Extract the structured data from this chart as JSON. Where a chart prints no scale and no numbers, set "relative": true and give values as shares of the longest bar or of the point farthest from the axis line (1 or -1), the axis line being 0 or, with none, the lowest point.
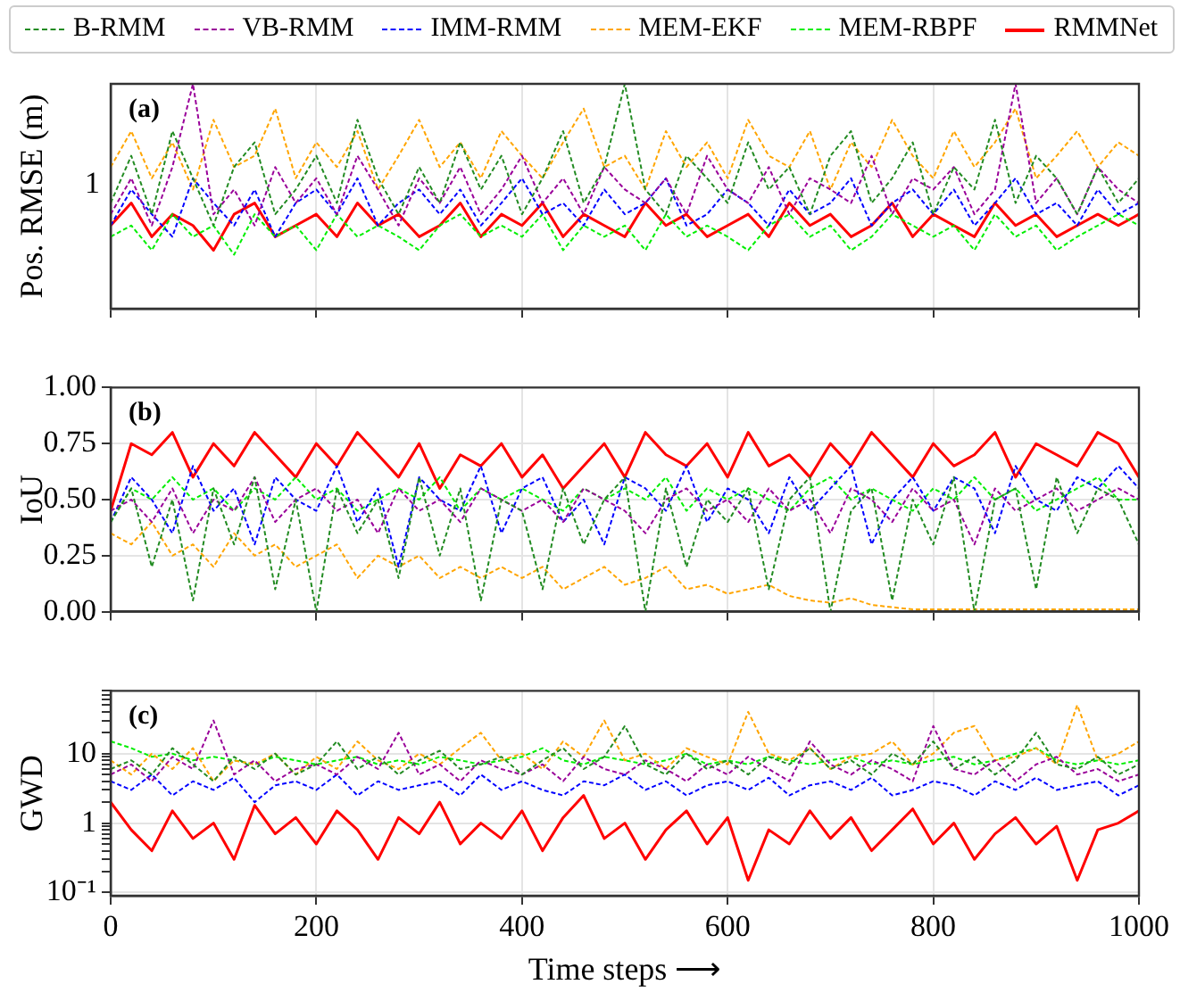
{
  "chart_data": [
    {
      "type": "line",
      "ylabel": "Pos. RMSE (m)",
      "annotations": [
        "(a)",
        "1"
      ],
      "legend": "top",
      "grid": true,
      "relative": true,
      "tick_labels": "y",
      "xlim": [
        0,
        1000
      ],
      "xticks": [
        0,
        200,
        400,
        600,
        800,
        1000
      ],
      "x": [
        0,
        20,
        40,
        60,
        80,
        100,
        120,
        140,
        160,
        180,
        200,
        220,
        240,
        260,
        280,
        300,
        320,
        340,
        360,
        380,
        400,
        420,
        440,
        460,
        480,
        500,
        520,
        540,
        560,
        580,
        600,
        620,
        640,
        660,
        680,
        700,
        720,
        740,
        760,
        780,
        800,
        820,
        840,
        860,
        880,
        900,
        920,
        940,
        960,
        980,
        1000
      ],
      "series": [
        {
          "name": "B-RMM",
          "color": "#228b22",
          "line_style": "dashed",
          "values": [
            0.47,
            0.68,
            0.42,
            0.79,
            0.58,
            0.37,
            0.63,
            0.74,
            0.42,
            0.53,
            0.68,
            0.47,
            0.84,
            0.58,
            0.42,
            0.63,
            0.47,
            0.74,
            0.53,
            0.68,
            0.42,
            0.58,
            0.79,
            0.47,
            0.63,
            1,
            0.53,
            0.42,
            0.68,
            0.58,
            0.47,
            0.74,
            0.53,
            0.63,
            0.42,
            0.68,
            0.79,
            0.47,
            0.58,
            0.74,
            0.42,
            0.63,
            0.53,
            0.84,
            0.47,
            0.68,
            0.58,
            0.42,
            0.63,
            0.47,
            0.58
          ]
        },
        {
          "name": "VB-RMM",
          "color": "#990099",
          "line_style": "dashed",
          "values": [
            0.42,
            0.58,
            0.37,
            0.63,
            1,
            0.42,
            0.53,
            0.37,
            0.63,
            0.47,
            0.58,
            0.42,
            0.68,
            0.53,
            0.37,
            0.58,
            0.47,
            0.63,
            0.42,
            0.53,
            0.68,
            0.47,
            0.58,
            0.42,
            0.63,
            0.53,
            0.47,
            0.58,
            0.42,
            0.68,
            0.53,
            0.47,
            0.63,
            0.42,
            0.58,
            0.53,
            0.47,
            0.68,
            0.42,
            0.58,
            0.53,
            0.63,
            0.42,
            0.53,
            1,
            0.47,
            0.58,
            0.42,
            0.63,
            0.53,
            0.47
          ]
        },
        {
          "name": "IMM-RMM",
          "color": "#0000ff",
          "line_style": "dashed",
          "values": [
            0.37,
            0.53,
            0.42,
            0.32,
            0.58,
            0.47,
            0.37,
            0.53,
            0.32,
            0.47,
            0.53,
            0.42,
            0.58,
            0.37,
            0.47,
            0.53,
            0.42,
            0.53,
            0.37,
            0.47,
            0.58,
            0.42,
            0.47,
            0.37,
            0.53,
            0.42,
            0.47,
            0.58,
            0.37,
            0.42,
            0.53,
            0.47,
            0.37,
            0.53,
            0.42,
            0.47,
            0.58,
            0.37,
            0.47,
            0.53,
            0.42,
            0.53,
            0.37,
            0.47,
            0.58,
            0.42,
            0.47,
            0.37,
            0.53,
            0.42,
            0.47
          ]
        },
        {
          "name": "MEM-EKF",
          "color": "#ffa500",
          "line_style": "dashed",
          "values": [
            0.63,
            0.79,
            0.58,
            0.74,
            0.53,
            0.84,
            0.63,
            0.68,
            0.89,
            0.58,
            0.74,
            0.63,
            0.79,
            0.53,
            0.68,
            0.84,
            0.63,
            0.74,
            0.58,
            0.79,
            0.68,
            0.58,
            0.74,
            0.89,
            0.63,
            0.68,
            0.53,
            0.79,
            0.63,
            0.74,
            0.58,
            0.84,
            0.68,
            0.63,
            0.79,
            0.53,
            0.74,
            0.63,
            0.84,
            0.68,
            0.58,
            0.79,
            0.63,
            0.74,
            0.89,
            0.58,
            0.68,
            0.79,
            0.63,
            0.74,
            0.68
          ]
        },
        {
          "name": "MEM-RBPF",
          "color": "#00ee00",
          "line_style": "dashed",
          "values": [
            0.32,
            0.37,
            0.26,
            0.42,
            0.32,
            0.37,
            0.24,
            0.42,
            0.32,
            0.37,
            0.26,
            0.42,
            0.32,
            0.37,
            0.32,
            0.26,
            0.37,
            0.42,
            0.32,
            0.37,
            0.32,
            0.42,
            0.26,
            0.37,
            0.32,
            0.37,
            0.26,
            0.42,
            0.32,
            0.37,
            0.32,
            0.26,
            0.37,
            0.42,
            0.32,
            0.37,
            0.26,
            0.32,
            0.42,
            0.37,
            0.32,
            0.37,
            0.26,
            0.42,
            0.32,
            0.37,
            0.26,
            0.32,
            0.37,
            0.42,
            0.37
          ]
        },
        {
          "name": "RMMNet",
          "color": "#ff0000",
          "line_style": "solid",
          "values": [
            0.37,
            0.47,
            0.32,
            0.42,
            0.37,
            0.26,
            0.42,
            0.47,
            0.32,
            0.37,
            0.42,
            0.32,
            0.47,
            0.37,
            0.42,
            0.32,
            0.37,
            0.47,
            0.32,
            0.42,
            0.37,
            0.47,
            0.32,
            0.42,
            0.37,
            0.32,
            0.47,
            0.37,
            0.42,
            0.32,
            0.37,
            0.42,
            0.32,
            0.47,
            0.37,
            0.42,
            0.32,
            0.37,
            0.47,
            0.32,
            0.42,
            0.37,
            0.32,
            0.47,
            0.37,
            0.42,
            0.32,
            0.37,
            0.42,
            0.37,
            0.42
          ]
        }
      ]
    },
    {
      "type": "line",
      "ylabel": "IoU",
      "annotations": [
        "(b)"
      ],
      "grid": true,
      "tick_labels": "y",
      "xlim": [
        0,
        1000
      ],
      "xticks": [
        0,
        200,
        400,
        600,
        800,
        1000
      ],
      "ylim": [
        0,
        1
      ],
      "yticks": [
        {
          "value": 0,
          "label": "0.00"
        },
        {
          "value": 0.25,
          "label": "0.25"
        },
        {
          "value": 0.5,
          "label": "0.50"
        },
        {
          "value": 0.75,
          "label": "0.75"
        },
        {
          "value": 1,
          "label": "1.00"
        }
      ],
      "x": [
        0,
        20,
        40,
        60,
        80,
        100,
        120,
        140,
        160,
        180,
        200,
        220,
        240,
        260,
        280,
        300,
        320,
        340,
        360,
        380,
        400,
        420,
        440,
        460,
        480,
        500,
        520,
        540,
        560,
        580,
        600,
        620,
        640,
        660,
        680,
        700,
        720,
        740,
        760,
        780,
        800,
        820,
        840,
        860,
        880,
        900,
        920,
        940,
        960,
        980,
        1000
      ],
      "series": [
        {
          "color": "#228b22",
          "line_style": "dashed",
          "values": [
            0.4,
            0.55,
            0.2,
            0.5,
            0.05,
            0.55,
            0.3,
            0.6,
            0.1,
            0.5,
            0.0,
            0.55,
            0.35,
            0.5,
            0.15,
            0.6,
            0.25,
            0.55,
            0.05,
            0.5,
            0.45,
            0.1,
            0.55,
            0.3,
            0.5,
            0.6,
            0.0,
            0.55,
            0.2,
            0.5,
            0.4,
            0.55,
            0.1,
            0.5,
            0.6,
            0.0,
            0.45,
            0.55,
            0.05,
            0.5,
            0.3,
            0.6,
            0.0,
            0.5,
            0.55,
            0.1,
            0.6,
            0.35,
            0.55,
            0.5,
            0.3
          ]
        },
        {
          "color": "#990099",
          "line_style": "dashed",
          "values": [
            0.45,
            0.5,
            0.4,
            0.55,
            0.35,
            0.5,
            0.45,
            0.6,
            0.4,
            0.5,
            0.55,
            0.45,
            0.5,
            0.35,
            0.55,
            0.45,
            0.5,
            0.4,
            0.55,
            0.5,
            0.45,
            0.5,
            0.4,
            0.55,
            0.5,
            0.45,
            0.35,
            0.5,
            0.55,
            0.45,
            0.5,
            0.4,
            0.55,
            0.45,
            0.5,
            0.35,
            0.55,
            0.5,
            0.4,
            0.55,
            0.45,
            0.5,
            0.3,
            0.55,
            0.45,
            0.5,
            0.55,
            0.45,
            0.5,
            0.55,
            0.5
          ]
        },
        {
          "color": "#0000ff",
          "line_style": "dashed",
          "values": [
            0.4,
            0.6,
            0.5,
            0.35,
            0.65,
            0.45,
            0.55,
            0.3,
            0.6,
            0.5,
            0.45,
            0.65,
            0.4,
            0.55,
            0.2,
            0.6,
            0.5,
            0.45,
            0.65,
            0.35,
            0.55,
            0.6,
            0.4,
            0.5,
            0.3,
            0.6,
            0.55,
            0.45,
            0.65,
            0.4,
            0.55,
            0.5,
            0.35,
            0.6,
            0.45,
            0.55,
            0.65,
            0.3,
            0.5,
            0.6,
            0.45,
            0.6,
            0.55,
            0.35,
            0.65,
            0.5,
            0.45,
            0.6,
            0.55,
            0.65,
            0.55
          ]
        },
        {
          "color": "#ffa500",
          "line_style": "dashed",
          "values": [
            0.35,
            0.3,
            0.4,
            0.25,
            0.3,
            0.2,
            0.35,
            0.25,
            0.3,
            0.2,
            0.25,
            0.3,
            0.15,
            0.25,
            0.2,
            0.25,
            0.15,
            0.2,
            0.15,
            0.2,
            0.15,
            0.2,
            0.1,
            0.15,
            0.2,
            0.12,
            0.15,
            0.2,
            0.1,
            0.12,
            0.08,
            0.1,
            0.12,
            0.07,
            0.05,
            0.04,
            0.06,
            0.03,
            0.02,
            0.01,
            0.01,
            0.01,
            0.01,
            0.01,
            0.01,
            0.01,
            0.01,
            0.01,
            0.01,
            0.01,
            0.01
          ]
        },
        {
          "color": "#00ee00",
          "line_style": "dashed",
          "values": [
            0.4,
            0.55,
            0.5,
            0.6,
            0.5,
            0.55,
            0.45,
            0.55,
            0.5,
            0.6,
            0.5,
            0.55,
            0.45,
            0.5,
            0.55,
            0.5,
            0.6,
            0.45,
            0.55,
            0.5,
            0.55,
            0.5,
            0.45,
            0.55,
            0.5,
            0.55,
            0.5,
            0.6,
            0.45,
            0.55,
            0.5,
            0.55,
            0.5,
            0.45,
            0.55,
            0.6,
            0.5,
            0.55,
            0.5,
            0.45,
            0.55,
            0.5,
            0.6,
            0.5,
            0.55,
            0.45,
            0.5,
            0.55,
            0.6,
            0.5,
            0.5
          ]
        },
        {
          "color": "#ff0000",
          "line_style": "solid",
          "values": [
            0.45,
            0.75,
            0.7,
            0.8,
            0.6,
            0.75,
            0.65,
            0.8,
            0.7,
            0.6,
            0.75,
            0.65,
            0.8,
            0.7,
            0.6,
            0.75,
            0.55,
            0.7,
            0.65,
            0.75,
            0.6,
            0.7,
            0.55,
            0.65,
            0.75,
            0.6,
            0.8,
            0.7,
            0.65,
            0.75,
            0.6,
            0.8,
            0.65,
            0.7,
            0.6,
            0.75,
            0.65,
            0.8,
            0.7,
            0.6,
            0.75,
            0.65,
            0.7,
            0.8,
            0.6,
            0.75,
            0.7,
            0.65,
            0.8,
            0.75,
            0.6
          ]
        }
      ]
    },
    {
      "type": "line",
      "ylabel": "GWD",
      "xlabel": "Time steps ⟶",
      "annotations": [
        "(c)"
      ],
      "grid": true,
      "log": "y",
      "xlim": [
        0,
        1000
      ],
      "xticks": [
        0,
        200,
        400,
        600,
        800,
        1000
      ],
      "ylim": [
        0.09,
        80
      ],
      "yticks": [
        {
          "value": 0.1,
          "label": "10⁻¹"
        },
        {
          "value": 0.2,
          "label": null
        },
        {
          "value": 0.3,
          "label": null
        },
        {
          "value": 0.4,
          "label": null
        },
        {
          "value": 0.5,
          "label": null
        },
        {
          "value": 0.6,
          "label": null
        },
        {
          "value": 0.7,
          "label": null
        },
        {
          "value": 0.8,
          "label": null
        },
        {
          "value": 0.9,
          "label": null
        },
        1,
        {
          "value": 2,
          "label": null
        },
        {
          "value": 3,
          "label": null
        },
        {
          "value": 4,
          "label": null
        },
        {
          "value": 5,
          "label": null
        },
        {
          "value": 6,
          "label": null
        },
        {
          "value": 7,
          "label": null
        },
        {
          "value": 8,
          "label": null
        },
        {
          "value": 9,
          "label": null
        },
        10,
        {
          "value": 20,
          "label": null
        },
        {
          "value": 30,
          "label": null
        },
        {
          "value": 40,
          "label": null
        },
        {
          "value": 50,
          "label": null
        },
        {
          "value": 60,
          "label": null
        },
        {
          "value": 70,
          "label": null
        },
        {
          "value": 80,
          "label": null
        }
      ],
      "x": [
        0,
        20,
        40,
        60,
        80,
        100,
        120,
        140,
        160,
        180,
        200,
        220,
        240,
        260,
        280,
        300,
        320,
        340,
        360,
        380,
        400,
        420,
        440,
        460,
        480,
        500,
        520,
        540,
        560,
        580,
        600,
        620,
        640,
        660,
        680,
        700,
        720,
        740,
        760,
        780,
        800,
        820,
        840,
        860,
        880,
        900,
        920,
        940,
        960,
        980,
        1000
      ],
      "series": [
        {
          "color": "#228b22",
          "line_style": "dashed",
          "values": [
            6,
            8,
            5,
            12,
            7,
            4,
            9,
            6,
            10,
            5,
            7,
            15,
            6,
            9,
            5,
            8,
            11,
            6,
            7,
            9,
            5,
            8,
            12,
            6,
            9,
            25,
            7,
            5,
            10,
            6,
            8,
            5,
            9,
            7,
            12,
            6,
            8,
            5,
            10,
            7,
            15,
            6,
            9,
            5,
            8,
            20,
            7,
            6,
            9,
            5,
            7
          ]
        },
        {
          "color": "#990099",
          "line_style": "dashed",
          "values": [
            5,
            7,
            4,
            9,
            6,
            30,
            5,
            8,
            4,
            6,
            7,
            5,
            9,
            6,
            20,
            5,
            7,
            4,
            8,
            6,
            5,
            7,
            4,
            9,
            6,
            5,
            8,
            6,
            4,
            7,
            5,
            9,
            6,
            4,
            15,
            7,
            5,
            8,
            6,
            4,
            25,
            6,
            5,
            8,
            4,
            7,
            9,
            5,
            6,
            4,
            5
          ]
        },
        {
          "color": "#0000ff",
          "line_style": "dashed",
          "values": [
            4,
            3,
            5,
            2.5,
            4,
            3,
            4.5,
            2,
            3.5,
            4,
            3,
            5,
            2.5,
            4,
            3,
            3.5,
            4,
            2.5,
            5,
            3,
            4,
            3,
            2.5,
            4,
            3.5,
            5,
            3,
            4,
            2.5,
            3.5,
            4,
            3,
            4.5,
            2.5,
            3.5,
            4,
            3,
            4.5,
            2.5,
            3,
            4,
            3.5,
            2.5,
            4,
            3,
            4.5,
            3,
            3.5,
            4,
            2.5,
            3.5
          ]
        },
        {
          "color": "#ffa500",
          "line_style": "dashed",
          "values": [
            8,
            5,
            10,
            6,
            12,
            4,
            8,
            7,
            10,
            5,
            9,
            6,
            15,
            8,
            6,
            10,
            7,
            12,
            20,
            8,
            10,
            6,
            15,
            9,
            30,
            8,
            10,
            6,
            12,
            9,
            7,
            40,
            10,
            8,
            12,
            6,
            9,
            10,
            15,
            7,
            10,
            20,
            25,
            8,
            9,
            12,
            7,
            50,
            8,
            10,
            15
          ]
        },
        {
          "color": "#00ee00",
          "line_style": "dashed",
          "values": [
            15,
            12,
            9,
            10,
            8,
            9,
            8,
            7,
            9,
            8,
            7,
            8,
            9,
            7,
            8,
            7,
            9,
            8,
            7,
            8,
            9,
            12,
            8,
            7,
            9,
            8,
            7,
            8,
            10,
            7,
            8,
            7,
            9,
            8,
            7,
            8,
            9,
            7,
            8,
            7,
            8,
            9,
            7,
            8,
            10,
            12,
            8,
            7,
            8,
            7,
            8
          ]
        },
        {
          "color": "#ff0000",
          "line_style": "solid",
          "values": [
            2,
            0.8,
            0.4,
            1.5,
            0.6,
            1,
            0.3,
            1.8,
            0.7,
            1.2,
            0.5,
            1.5,
            0.8,
            0.3,
            1.2,
            0.7,
            2,
            0.5,
            1,
            0.6,
            1.5,
            0.4,
            1.2,
            2.5,
            0.6,
            1,
            0.3,
            0.8,
            1.5,
            0.5,
            1.2,
            0.15,
            0.8,
            0.5,
            1.5,
            0.6,
            1.2,
            0.4,
            0.8,
            1.6,
            0.5,
            1,
            0.3,
            0.7,
            1.2,
            0.5,
            0.9,
            0.15,
            0.8,
            1,
            1.5
          ]
        }
      ]
    }
  ]
}
